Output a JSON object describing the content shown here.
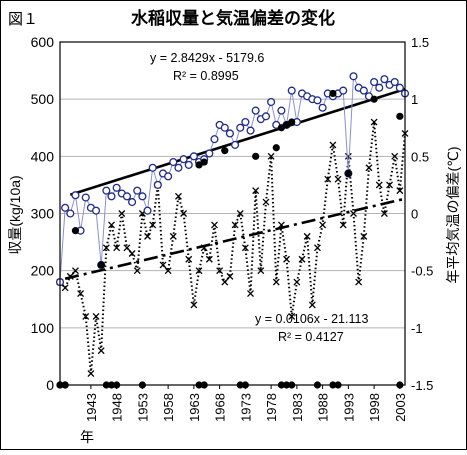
{
  "figure_label": "図１",
  "title": "水稲収量と気温偏差の変化",
  "chart_data": {
    "type": "line",
    "title": "水稲収量と気温偏差の変化",
    "xlabel": "年",
    "ylabel_left": "収量(kg/10a)",
    "ylabel_right": "年平均気温の偏差(℃)",
    "x_tick_labels": [
      "1943",
      "1948",
      "1953",
      "1958",
      "1963",
      "1968",
      "1973",
      "1978",
      "1983",
      "1988",
      "1993",
      "1998",
      "2003"
    ],
    "x_ticks": [
      1943,
      1948,
      1953,
      1958,
      1963,
      1968,
      1973,
      1978,
      1983,
      1988,
      1993,
      1998,
      2003
    ],
    "xlim": [
      1937,
      2004
    ],
    "ylim_left": [
      0,
      600
    ],
    "ylim_right": [
      -1.5,
      1.5
    ],
    "y_left_ticks": [
      0,
      100,
      200,
      300,
      400,
      500,
      600
    ],
    "y_right_ticks": [
      "-1.5",
      "-1",
      "-0.5",
      "0",
      "0.5",
      "1",
      "1.5"
    ],
    "y_right_tick_values": [
      -1.5,
      -1,
      -0.5,
      0,
      0.5,
      1,
      1.5
    ],
    "grid": true,
    "series": [
      {
        "axis": "left",
        "style": "solid-line-open-circles",
        "x": [
          1937,
          1938,
          1939,
          1940,
          1941,
          1942,
          1943,
          1944,
          1945,
          1946,
          1947,
          1948,
          1949,
          1950,
          1951,
          1952,
          1953,
          1954,
          1955,
          1956,
          1957,
          1958,
          1959,
          1960,
          1961,
          1962,
          1963,
          1964,
          1965,
          1966,
          1967,
          1968,
          1969,
          1970,
          1971,
          1972,
          1973,
          1974,
          1975,
          1976,
          1977,
          1978,
          1979,
          1980,
          1981,
          1982,
          1983,
          1984,
          1985,
          1986,
          1987,
          1988,
          1989,
          1990,
          1991,
          1992,
          1993,
          1994,
          1995,
          1996,
          1997,
          1998,
          1999,
          2000,
          2001,
          2002,
          2003,
          2004
        ],
        "values": [
          180,
          310,
          300,
          332,
          270,
          328,
          310,
          305,
          210,
          340,
          330,
          345,
          335,
          330,
          320,
          340,
          330,
          305,
          380,
          350,
          370,
          365,
          390,
          380,
          395,
          385,
          400,
          390,
          395,
          405,
          430,
          455,
          450,
          440,
          420,
          450,
          460,
          445,
          480,
          465,
          470,
          495,
          455,
          480,
          455,
          515,
          460,
          510,
          505,
          500,
          498,
          485,
          510,
          505,
          510,
          515,
          370,
          540,
          520,
          515,
          505,
          530,
          520,
          535,
          525,
          530,
          520,
          510
        ],
        "filled_markers": [
          {
            "year": 1937,
            "value": 0
          },
          {
            "year": 1938,
            "value": 0
          },
          {
            "year": 1940,
            "value": 270
          },
          {
            "year": 1945,
            "value": 210
          },
          {
            "year": 1964,
            "value": 385
          },
          {
            "year": 1965,
            "value": 390
          },
          {
            "year": 1969,
            "value": 410
          },
          {
            "year": 1975,
            "value": 400
          },
          {
            "year": 1979,
            "value": 415
          },
          {
            "year": 1980,
            "value": 450
          },
          {
            "year": 1981,
            "value": 455
          },
          {
            "year": 1982,
            "value": 460
          },
          {
            "year": 1990,
            "value": 510
          },
          {
            "year": 1993,
            "value": 370
          },
          {
            "year": 1998,
            "value": 500
          },
          {
            "year": 2003,
            "value": 470
          }
        ]
      },
      {
        "axis": "right",
        "style": "dotted-line-x-markers",
        "x": [
          1937,
          1938,
          1939,
          1940,
          1941,
          1942,
          1943,
          1944,
          1945,
          1946,
          1947,
          1948,
          1949,
          1950,
          1951,
          1952,
          1953,
          1954,
          1955,
          1956,
          1957,
          1958,
          1959,
          1960,
          1961,
          1962,
          1963,
          1964,
          1965,
          1966,
          1967,
          1968,
          1969,
          1970,
          1971,
          1972,
          1973,
          1974,
          1975,
          1976,
          1977,
          1978,
          1979,
          1980,
          1981,
          1982,
          1983,
          1984,
          1985,
          1986,
          1987,
          1988,
          1989,
          1990,
          1991,
          1992,
          1993,
          1994,
          1995,
          1996,
          1997,
          1998,
          1999,
          2000,
          2001,
          2002,
          2003,
          2004
        ],
        "values": [
          -0.6,
          -0.65,
          -0.55,
          -0.5,
          -0.7,
          -0.9,
          -1.4,
          -0.9,
          -1.2,
          -0.3,
          -0.1,
          -0.3,
          0.0,
          -0.3,
          -0.35,
          -0.5,
          0.0,
          -0.2,
          -0.1,
          0.25,
          -0.45,
          -0.5,
          -0.2,
          0.15,
          0.0,
          -0.4,
          -0.8,
          -0.5,
          -0.3,
          -0.4,
          -0.1,
          -0.5,
          -0.6,
          -0.55,
          -0.1,
          0.0,
          -0.3,
          -0.7,
          0.2,
          -0.5,
          0.1,
          0.5,
          -0.6,
          -0.1,
          -0.4,
          -0.9,
          -0.6,
          -0.4,
          -0.2,
          -0.8,
          -0.3,
          -0.1,
          0.3,
          0.6,
          0.3,
          -0.1,
          0.5,
          0.0,
          -0.6,
          -0.2,
          0.4,
          0.8,
          0.25,
          0.0,
          0.25,
          0.5,
          0.2,
          0.7
        ]
      },
      {
        "axis": "left",
        "style": "solid-trend",
        "equation": "y = 2.8429x - 5179.6",
        "r2": "R² = 0.8995",
        "slope": 2.8429,
        "intercept": -5179.6
      },
      {
        "axis": "right",
        "style": "dashdot-trend",
        "equation": "y = 0.0106x - 21.113",
        "r2": "R² = 0.4127",
        "slope": 0.0106,
        "intercept": -21.113
      }
    ],
    "zero_markers_left": [
      1937,
      1938,
      1946,
      1947,
      1948,
      1953,
      1964,
      1965,
      1972,
      1973,
      1980,
      1981,
      1982,
      1987,
      1990,
      1991,
      2003
    ]
  }
}
